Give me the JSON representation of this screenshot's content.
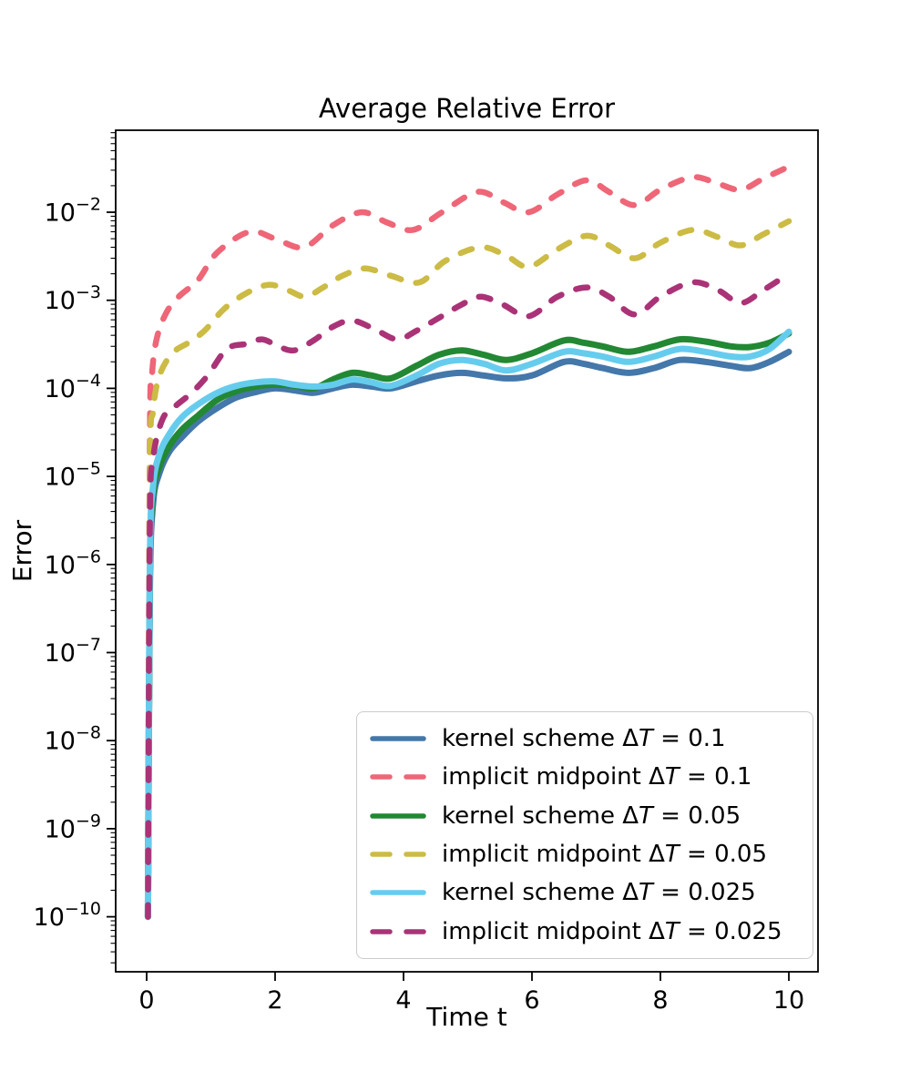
{
  "chart_data": {
    "type": "line",
    "title": "Average Relative Error",
    "xlabel": "Time t",
    "ylabel": "Error",
    "x_axis": {
      "min": -0.5,
      "max": 10.45,
      "ticks": [
        0,
        2,
        4,
        6,
        8,
        10
      ]
    },
    "y_axis": {
      "scale": "log",
      "min": 2.4e-11,
      "max": 0.085,
      "tick_exponents": [
        -2,
        -3,
        -4,
        -5,
        -6,
        -7,
        -8,
        -9,
        -10
      ],
      "minor_ticks": true
    },
    "grid": false,
    "legend_position": "lower right inside axes",
    "series": [
      {
        "name": "kernel scheme ΔT = 0.1",
        "color": "#4477AA",
        "linestyle": "solid",
        "points": [
          [
            0.02,
            1e-10
          ],
          [
            0.05,
            5e-07
          ],
          [
            0.1,
            5e-06
          ],
          [
            0.2,
            1.1e-05
          ],
          [
            0.35,
            1.9e-05
          ],
          [
            0.55,
            2.8e-05
          ],
          [
            0.8,
            4.2e-05
          ],
          [
            1.1,
            6e-05
          ],
          [
            1.4,
            7.9e-05
          ],
          [
            1.7,
            9.1e-05
          ],
          [
            2.0,
            0.0001
          ],
          [
            2.3,
            9.5e-05
          ],
          [
            2.6,
            8.9e-05
          ],
          [
            2.9,
            0.0001
          ],
          [
            3.2,
            0.00011
          ],
          [
            3.5,
            0.000105
          ],
          [
            3.8,
            0.0001
          ],
          [
            4.2,
            0.00012
          ],
          [
            4.55,
            0.00014
          ],
          [
            4.9,
            0.00015
          ],
          [
            5.25,
            0.00014
          ],
          [
            5.6,
            0.00013
          ],
          [
            6.0,
            0.00014
          ],
          [
            6.5,
            0.0002
          ],
          [
            6.8,
            0.00019
          ],
          [
            7.1,
            0.00017
          ],
          [
            7.5,
            0.00015
          ],
          [
            7.9,
            0.00017
          ],
          [
            8.3,
            0.00021
          ],
          [
            8.7,
            0.0002
          ],
          [
            9.1,
            0.00018
          ],
          [
            9.4,
            0.00017
          ],
          [
            9.7,
            0.0002
          ],
          [
            10.0,
            0.00026
          ]
        ]
      },
      {
        "name": "implicit midpoint ΔT = 0.1",
        "color": "#EE6677",
        "linestyle": "dashed",
        "points": [
          [
            0.02,
            1e-10
          ],
          [
            0.05,
            2.5e-05
          ],
          [
            0.08,
            0.00013
          ],
          [
            0.15,
            0.00035
          ],
          [
            0.3,
            0.00071
          ],
          [
            0.5,
            0.0011
          ],
          [
            0.8,
            0.0017
          ],
          [
            1.1,
            0.0035
          ],
          [
            1.6,
            0.006
          ],
          [
            2.0,
            0.005
          ],
          [
            2.45,
            0.004
          ],
          [
            2.9,
            0.0071
          ],
          [
            3.35,
            0.01
          ],
          [
            3.75,
            0.0076
          ],
          [
            4.15,
            0.0063
          ],
          [
            4.6,
            0.01
          ],
          [
            5.15,
            0.017
          ],
          [
            5.55,
            0.013
          ],
          [
            5.95,
            0.01
          ],
          [
            6.4,
            0.016
          ],
          [
            6.85,
            0.023
          ],
          [
            7.2,
            0.017
          ],
          [
            7.6,
            0.012
          ],
          [
            8.0,
            0.018
          ],
          [
            8.5,
            0.025
          ],
          [
            8.9,
            0.021
          ],
          [
            9.25,
            0.018
          ],
          [
            9.6,
            0.024
          ],
          [
            10.0,
            0.033
          ]
        ]
      },
      {
        "name": "kernel scheme ΔT = 0.05",
        "color": "#228833",
        "linestyle": "solid",
        "points": [
          [
            0.02,
            1e-10
          ],
          [
            0.05,
            7.9e-07
          ],
          [
            0.1,
            6.3e-06
          ],
          [
            0.2,
            1.3e-05
          ],
          [
            0.35,
            2.2e-05
          ],
          [
            0.55,
            3.4e-05
          ],
          [
            0.8,
            4.9e-05
          ],
          [
            1.1,
            7.4e-05
          ],
          [
            1.4,
            9.3e-05
          ],
          [
            1.7,
            0.000105
          ],
          [
            2.0,
            0.00011
          ],
          [
            2.3,
            0.000107
          ],
          [
            2.6,
            0.0001
          ],
          [
            2.9,
            0.000126
          ],
          [
            3.2,
            0.00015
          ],
          [
            3.5,
            0.00014
          ],
          [
            3.8,
            0.00013
          ],
          [
            4.2,
            0.00018
          ],
          [
            4.55,
            0.00024
          ],
          [
            4.9,
            0.00027
          ],
          [
            5.25,
            0.00024
          ],
          [
            5.6,
            0.00021
          ],
          [
            6.0,
            0.00025
          ],
          [
            6.5,
            0.00035
          ],
          [
            6.8,
            0.00033
          ],
          [
            7.1,
            0.0003
          ],
          [
            7.5,
            0.00026
          ],
          [
            7.9,
            0.0003
          ],
          [
            8.3,
            0.00036
          ],
          [
            8.7,
            0.00034
          ],
          [
            9.1,
            0.0003
          ],
          [
            9.4,
            0.000295
          ],
          [
            9.7,
            0.00033
          ],
          [
            10.0,
            0.00042
          ]
        ]
      },
      {
        "name": "implicit midpoint ΔT = 0.05",
        "color": "#CCBB44",
        "linestyle": "dashed",
        "points": [
          [
            0.02,
            1e-10
          ],
          [
            0.05,
            1e-05
          ],
          [
            0.1,
            5.6e-05
          ],
          [
            0.2,
            0.00014
          ],
          [
            0.4,
            0.00025
          ],
          [
            0.65,
            0.00033
          ],
          [
            0.9,
            0.00045
          ],
          [
            1.2,
            0.00079
          ],
          [
            1.55,
            0.0012
          ],
          [
            1.9,
            0.0015
          ],
          [
            2.2,
            0.0013
          ],
          [
            2.47,
            0.0011
          ],
          [
            2.75,
            0.0014
          ],
          [
            3.05,
            0.0019
          ],
          [
            3.4,
            0.0023
          ],
          [
            3.8,
            0.0019
          ],
          [
            4.25,
            0.0016
          ],
          [
            4.65,
            0.0028
          ],
          [
            5.2,
            0.004
          ],
          [
            5.6,
            0.0032
          ],
          [
            5.95,
            0.0024
          ],
          [
            6.4,
            0.0038
          ],
          [
            6.85,
            0.0054
          ],
          [
            7.2,
            0.0042
          ],
          [
            7.6,
            0.003
          ],
          [
            8.0,
            0.0045
          ],
          [
            8.5,
            0.0063
          ],
          [
            8.9,
            0.0052
          ],
          [
            9.25,
            0.0042
          ],
          [
            9.6,
            0.0056
          ],
          [
            10.0,
            0.0079
          ]
        ]
      },
      {
        "name": "kernel scheme ΔT = 0.025",
        "color": "#66CCEE",
        "linestyle": "solid",
        "points": [
          [
            0.02,
            1e-10
          ],
          [
            0.05,
            1e-06
          ],
          [
            0.1,
            7.9e-06
          ],
          [
            0.2,
            1.8e-05
          ],
          [
            0.35,
            3e-05
          ],
          [
            0.55,
            4.7e-05
          ],
          [
            0.8,
            6.6e-05
          ],
          [
            1.1,
            8.9e-05
          ],
          [
            1.4,
            0.000107
          ],
          [
            1.7,
            0.000117
          ],
          [
            2.0,
            0.00012
          ],
          [
            2.3,
            0.00011
          ],
          [
            2.6,
            0.000105
          ],
          [
            2.9,
            0.00011
          ],
          [
            3.2,
            0.000126
          ],
          [
            3.5,
            0.000117
          ],
          [
            3.8,
            0.000107
          ],
          [
            4.2,
            0.00014
          ],
          [
            4.55,
            0.00019
          ],
          [
            4.9,
            0.00021
          ],
          [
            5.25,
            0.00019
          ],
          [
            5.6,
            0.00016
          ],
          [
            6.0,
            0.00019
          ],
          [
            6.5,
            0.00026
          ],
          [
            6.8,
            0.00025
          ],
          [
            7.1,
            0.00023
          ],
          [
            7.5,
            0.0002
          ],
          [
            7.9,
            0.00023
          ],
          [
            8.3,
            0.00028
          ],
          [
            8.7,
            0.00026
          ],
          [
            9.1,
            0.00023
          ],
          [
            9.4,
            0.00023
          ],
          [
            9.7,
            0.00028
          ],
          [
            10.0,
            0.00044
          ]
        ]
      },
      {
        "name": "implicit midpoint ΔT = 0.025",
        "color": "#AA3377",
        "linestyle": "dashed",
        "points": [
          [
            0.02,
            1e-10
          ],
          [
            0.05,
            2.5e-06
          ],
          [
            0.1,
            1.6e-05
          ],
          [
            0.25,
            4.5e-05
          ],
          [
            0.45,
            6.3e-05
          ],
          [
            0.7,
            8.9e-05
          ],
          [
            0.95,
            0.00014
          ],
          [
            1.25,
            0.00028
          ],
          [
            1.55,
            0.00032
          ],
          [
            1.8,
            0.00036
          ],
          [
            2.05,
            0.0003
          ],
          [
            2.3,
            0.00027
          ],
          [
            2.6,
            0.00035
          ],
          [
            2.9,
            0.0005
          ],
          [
            3.2,
            0.00059
          ],
          [
            3.55,
            0.00047
          ],
          [
            3.9,
            0.00036
          ],
          [
            4.2,
            0.00045
          ],
          [
            4.55,
            0.00063
          ],
          [
            4.9,
            0.00089
          ],
          [
            5.2,
            0.0011
          ],
          [
            5.55,
            0.00089
          ],
          [
            5.95,
            0.00066
          ],
          [
            6.4,
            0.0011
          ],
          [
            6.85,
            0.0014
          ],
          [
            7.2,
            0.0011
          ],
          [
            7.6,
            0.00069
          ],
          [
            8.0,
            0.0011
          ],
          [
            8.5,
            0.0016
          ],
          [
            8.9,
            0.0013
          ],
          [
            9.25,
            0.00093
          ],
          [
            9.6,
            0.0013
          ],
          [
            10.0,
            0.002
          ]
        ]
      }
    ]
  }
}
